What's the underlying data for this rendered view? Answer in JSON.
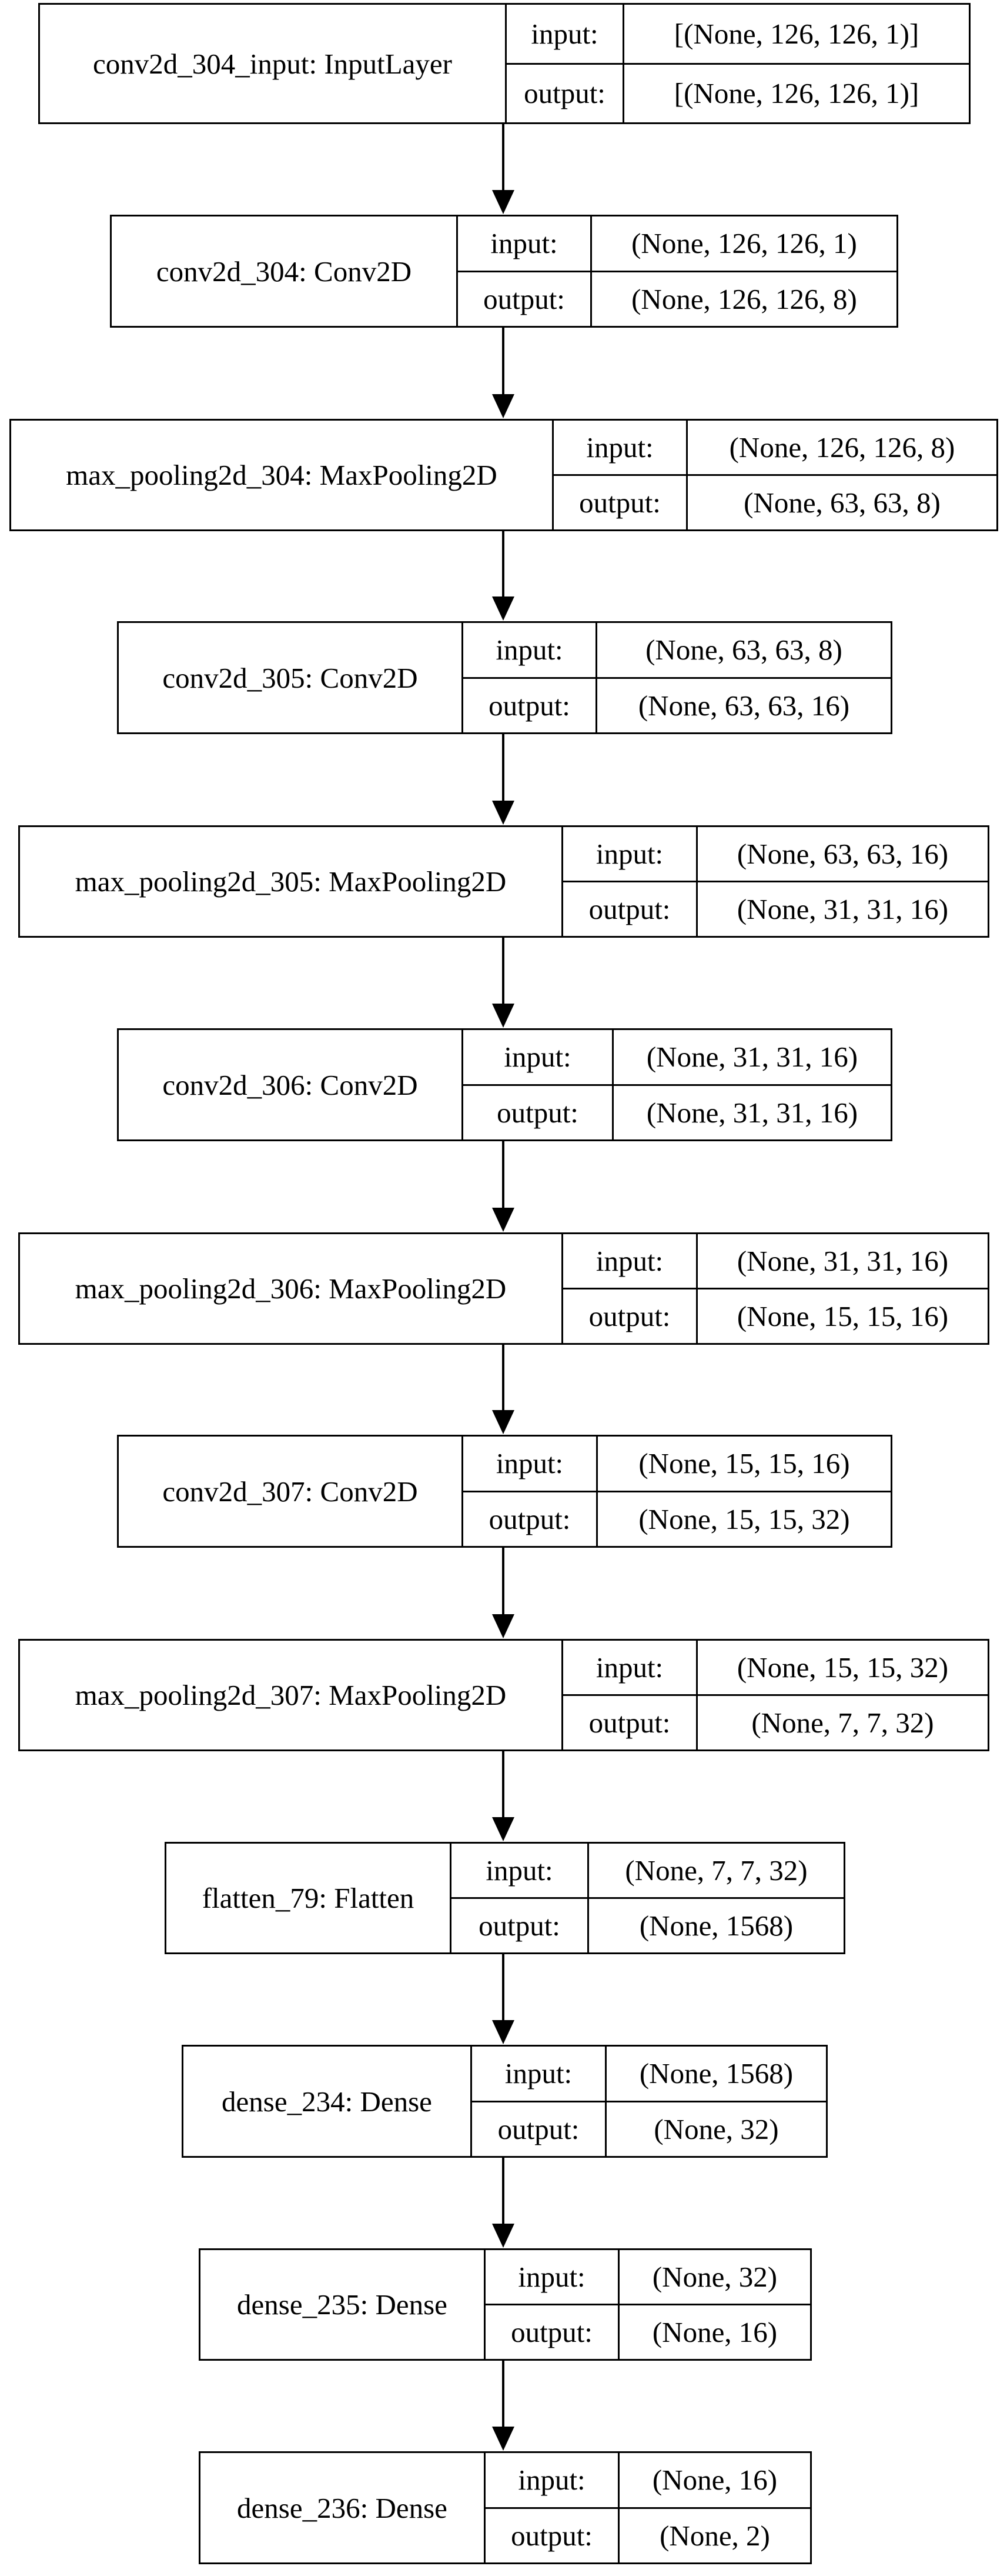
{
  "layers": [
    {
      "name": "conv2d_304_input: InputLayer",
      "input_label": "input:",
      "output_label": "output:",
      "input": "[(None, 126, 126, 1)]",
      "output": "[(None, 126, 126, 1)]"
    },
    {
      "name": "conv2d_304: Conv2D",
      "input_label": "input:",
      "output_label": "output:",
      "input": "(None, 126, 126, 1)",
      "output": "(None, 126, 126, 8)"
    },
    {
      "name": "max_pooling2d_304: MaxPooling2D",
      "input_label": "input:",
      "output_label": "output:",
      "input": "(None, 126, 126, 8)",
      "output": "(None, 63, 63, 8)"
    },
    {
      "name": "conv2d_305: Conv2D",
      "input_label": "input:",
      "output_label": "output:",
      "input": "(None, 63, 63, 8)",
      "output": "(None, 63, 63, 16)"
    },
    {
      "name": "max_pooling2d_305: MaxPooling2D",
      "input_label": "input:",
      "output_label": "output:",
      "input": "(None, 63, 63, 16)",
      "output": "(None, 31, 31, 16)"
    },
    {
      "name": "conv2d_306: Conv2D",
      "input_label": "input:",
      "output_label": "output:",
      "input": "(None, 31, 31, 16)",
      "output": "(None, 31, 31, 16)"
    },
    {
      "name": "max_pooling2d_306: MaxPooling2D",
      "input_label": "input:",
      "output_label": "output:",
      "input": "(None, 31, 31, 16)",
      "output": "(None, 15, 15, 16)"
    },
    {
      "name": "conv2d_307: Conv2D",
      "input_label": "input:",
      "output_label": "output:",
      "input": "(None, 15, 15, 16)",
      "output": "(None, 15, 15, 32)"
    },
    {
      "name": "max_pooling2d_307: MaxPooling2D",
      "input_label": "input:",
      "output_label": "output:",
      "input": "(None, 15, 15, 32)",
      "output": "(None, 7, 7, 32)"
    },
    {
      "name": "flatten_79: Flatten",
      "input_label": "input:",
      "output_label": "output:",
      "input": "(None, 7, 7, 32)",
      "output": "(None, 1568)"
    },
    {
      "name": "dense_234: Dense",
      "input_label": "input:",
      "output_label": "output:",
      "input": "(None, 1568)",
      "output": "(None, 32)"
    },
    {
      "name": "dense_235: Dense",
      "input_label": "input:",
      "output_label": "output:",
      "input": "(None, 32)",
      "output": "(None, 16)"
    },
    {
      "name": "dense_236: Dense",
      "input_label": "input:",
      "output_label": "output:",
      "input": "(None, 16)",
      "output": "(None, 2)"
    }
  ],
  "colors": {
    "stroke": "#000000",
    "background": "#ffffff",
    "text": "#000000"
  }
}
